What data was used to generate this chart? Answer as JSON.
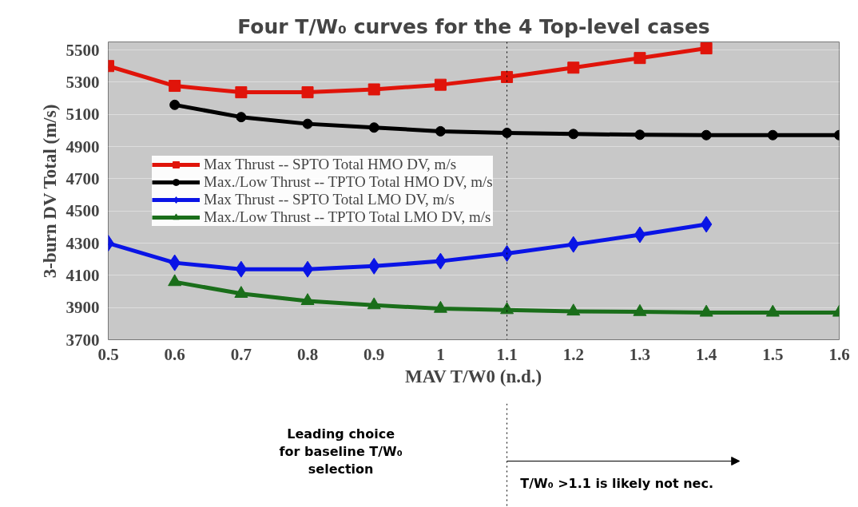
{
  "chart_data": {
    "type": "line",
    "title": "Four T/W₀ curves for the 4 Top-level cases",
    "xlabel": "MAV T/W0 (n.d.)",
    "ylabel": "3-burn DV Total (m/s)",
    "x": [
      0.5,
      0.6,
      0.7,
      0.8,
      0.9,
      1.0,
      1.1,
      1.2,
      1.3,
      1.4,
      1.5,
      1.6
    ],
    "xlim": [
      0.5,
      1.6
    ],
    "xticks": [
      0.5,
      0.6,
      0.7,
      0.8,
      0.9,
      {
        "value": 1.0,
        "label": "1"
      },
      1.1,
      1.2,
      1.3,
      1.4,
      1.5,
      1.6
    ],
    "ylim": [
      3700,
      5550
    ],
    "yticks": [
      3700,
      3900,
      4100,
      4300,
      4500,
      4700,
      4900,
      5100,
      5300,
      5500
    ],
    "grid": "y",
    "legend": "left",
    "line_style": "solid",
    "series": [
      {
        "name": "Max Thrust -- SPTO Total HMO DV, m/s",
        "color": "#e0140a",
        "marker": "square",
        "values": [
          5400,
          5277,
          5237,
          5237,
          5255,
          5284,
          5332,
          5390,
          5450,
          5510,
          null,
          null
        ]
      },
      {
        "name": "Max./Low Thrust -- TPTO Total HMO DV, m/s",
        "color": "#000000",
        "marker": "circle",
        "values": [
          null,
          5159,
          5083,
          5041,
          5018,
          4995,
          4985,
          4978,
          4973,
          4971,
          4971,
          4971
        ]
      },
      {
        "name": "Max Thrust -- SPTO Total LMO DV, m/s",
        "color": "#0a14e6",
        "marker": "diamond",
        "values": [
          4300,
          4178,
          4138,
          4138,
          4157,
          4188,
          4236,
          4292,
          4352,
          4417,
          null,
          null
        ]
      },
      {
        "name": "Max./Low Thrust -- TPTO Total LMO DV, m/s",
        "color": "#1a6e1a",
        "marker": "triangle",
        "values": [
          null,
          4059,
          3986,
          3941,
          3915,
          3893,
          3885,
          3876,
          3873,
          3869,
          3869,
          3869
        ]
      }
    ],
    "ref_lines": [
      {
        "axis": "x",
        "value": 1.1,
        "label": null,
        "color": "#000000",
        "line_style": "dotted"
      }
    ],
    "annotations": [
      "Leading choice for baseline T/W₀ selection",
      "T/W₀ >1.1 is likely not nec."
    ]
  }
}
